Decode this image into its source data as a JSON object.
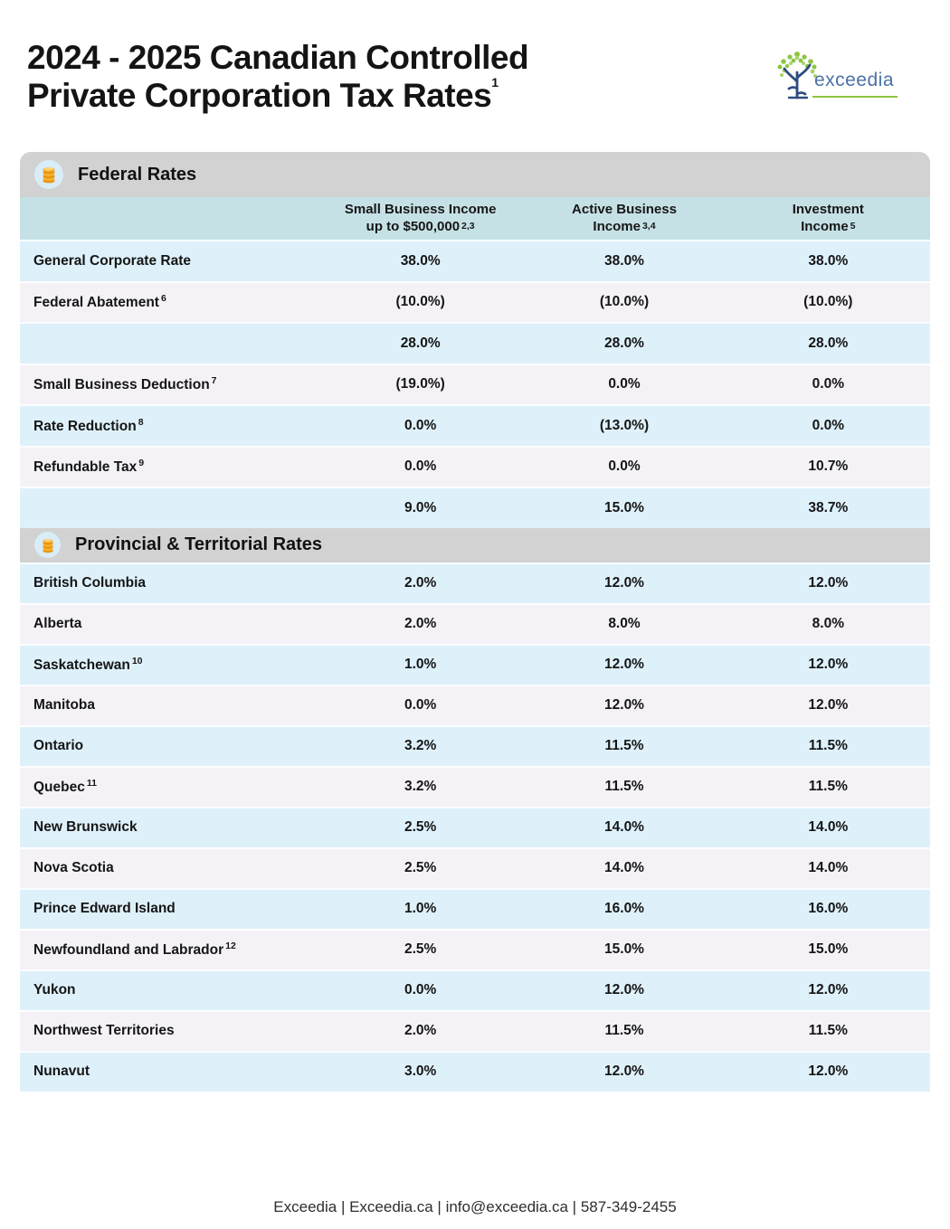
{
  "header": {
    "title_line1": "2024 - 2025 Canadian Controlled",
    "title_line2": "Private Corporation Tax Rates",
    "title_sup": "1"
  },
  "logo": {
    "text": "exceedia"
  },
  "table": {
    "columns": [
      {
        "line1": "Small Business Income",
        "line2": "up to $500,000",
        "sup": "2,3"
      },
      {
        "line1": "Active Business",
        "line2": "Income",
        "sup": "3,4"
      },
      {
        "line1": "Investment",
        "line2": "Income",
        "sup": "5"
      }
    ],
    "sections": [
      {
        "header": "Federal Rates",
        "icon": "coins-icon",
        "rows": [
          {
            "label": "General Corporate Rate",
            "sup": "",
            "values": [
              "38.0%",
              "38.0%",
              "38.0%"
            ]
          },
          {
            "label": "Federal Abatement",
            "sup": "6",
            "values": [
              "(10.0%)",
              "(10.0%)",
              "(10.0%)"
            ]
          },
          {
            "label": "",
            "sup": "",
            "values": [
              "28.0%",
              "28.0%",
              "28.0%"
            ]
          },
          {
            "label": "Small Business Deduction",
            "sup": "7",
            "values": [
              "(19.0%)",
              "0.0%",
              "0.0%"
            ]
          },
          {
            "label": "Rate Reduction",
            "sup": "8",
            "values": [
              "0.0%",
              "(13.0%)",
              "0.0%"
            ]
          },
          {
            "label": "Refundable Tax",
            "sup": "9",
            "values": [
              "0.0%",
              "0.0%",
              "10.7%"
            ]
          },
          {
            "label": "",
            "sup": "",
            "values": [
              "9.0%",
              "15.0%",
              "38.7%"
            ]
          }
        ]
      },
      {
        "header": "Provincial & Territorial Rates",
        "icon": "coins-icon",
        "rows": [
          {
            "label": "British Columbia",
            "sup": "",
            "values": [
              "2.0%",
              "12.0%",
              "12.0%"
            ]
          },
          {
            "label": "Alberta",
            "sup": "",
            "values": [
              "2.0%",
              "8.0%",
              "8.0%"
            ]
          },
          {
            "label": "Saskatchewan",
            "sup": "10",
            "values": [
              "1.0%",
              "12.0%",
              "12.0%"
            ]
          },
          {
            "label": "Manitoba",
            "sup": "",
            "values": [
              "0.0%",
              "12.0%",
              "12.0%"
            ]
          },
          {
            "label": "Ontario",
            "sup": "",
            "values": [
              "3.2%",
              "11.5%",
              "11.5%"
            ]
          },
          {
            "label": "Quebec",
            "sup": "11",
            "values": [
              "3.2%",
              "11.5%",
              "11.5%"
            ]
          },
          {
            "label": "New Brunswick",
            "sup": "",
            "values": [
              "2.5%",
              "14.0%",
              "14.0%"
            ]
          },
          {
            "label": "Nova Scotia",
            "sup": "",
            "values": [
              "2.5%",
              "14.0%",
              "14.0%"
            ]
          },
          {
            "label": "Prince Edward Island",
            "sup": "",
            "values": [
              "1.0%",
              "16.0%",
              "16.0%"
            ]
          },
          {
            "label": "Newfoundland and Labrador",
            "sup": "12",
            "values": [
              "2.5%",
              "15.0%",
              "15.0%"
            ]
          },
          {
            "label": "Yukon",
            "sup": "",
            "values": [
              "0.0%",
              "12.0%",
              "12.0%"
            ]
          },
          {
            "label": "Northwest Territories",
            "sup": "",
            "values": [
              "2.0%",
              "11.5%",
              "11.5%"
            ]
          },
          {
            "label": "Nunavut",
            "sup": "",
            "values": [
              "3.0%",
              "12.0%",
              "12.0%"
            ]
          }
        ]
      }
    ]
  },
  "footer": {
    "text": "Exceedia | Exceedia.ca | info@exceedia.ca | 587-349-2455"
  },
  "colors": {
    "section_header_bg": "#d2d2d2",
    "column_header_bg": "#c6e1e6",
    "row_blue": "#def1fb",
    "row_lavender": "#f5f2f7",
    "icon_circle_bg": "#d8edf8",
    "coin_gold": "#f9b234",
    "logo_text": "#4a72a5",
    "logo_green": "#8cc63f"
  }
}
